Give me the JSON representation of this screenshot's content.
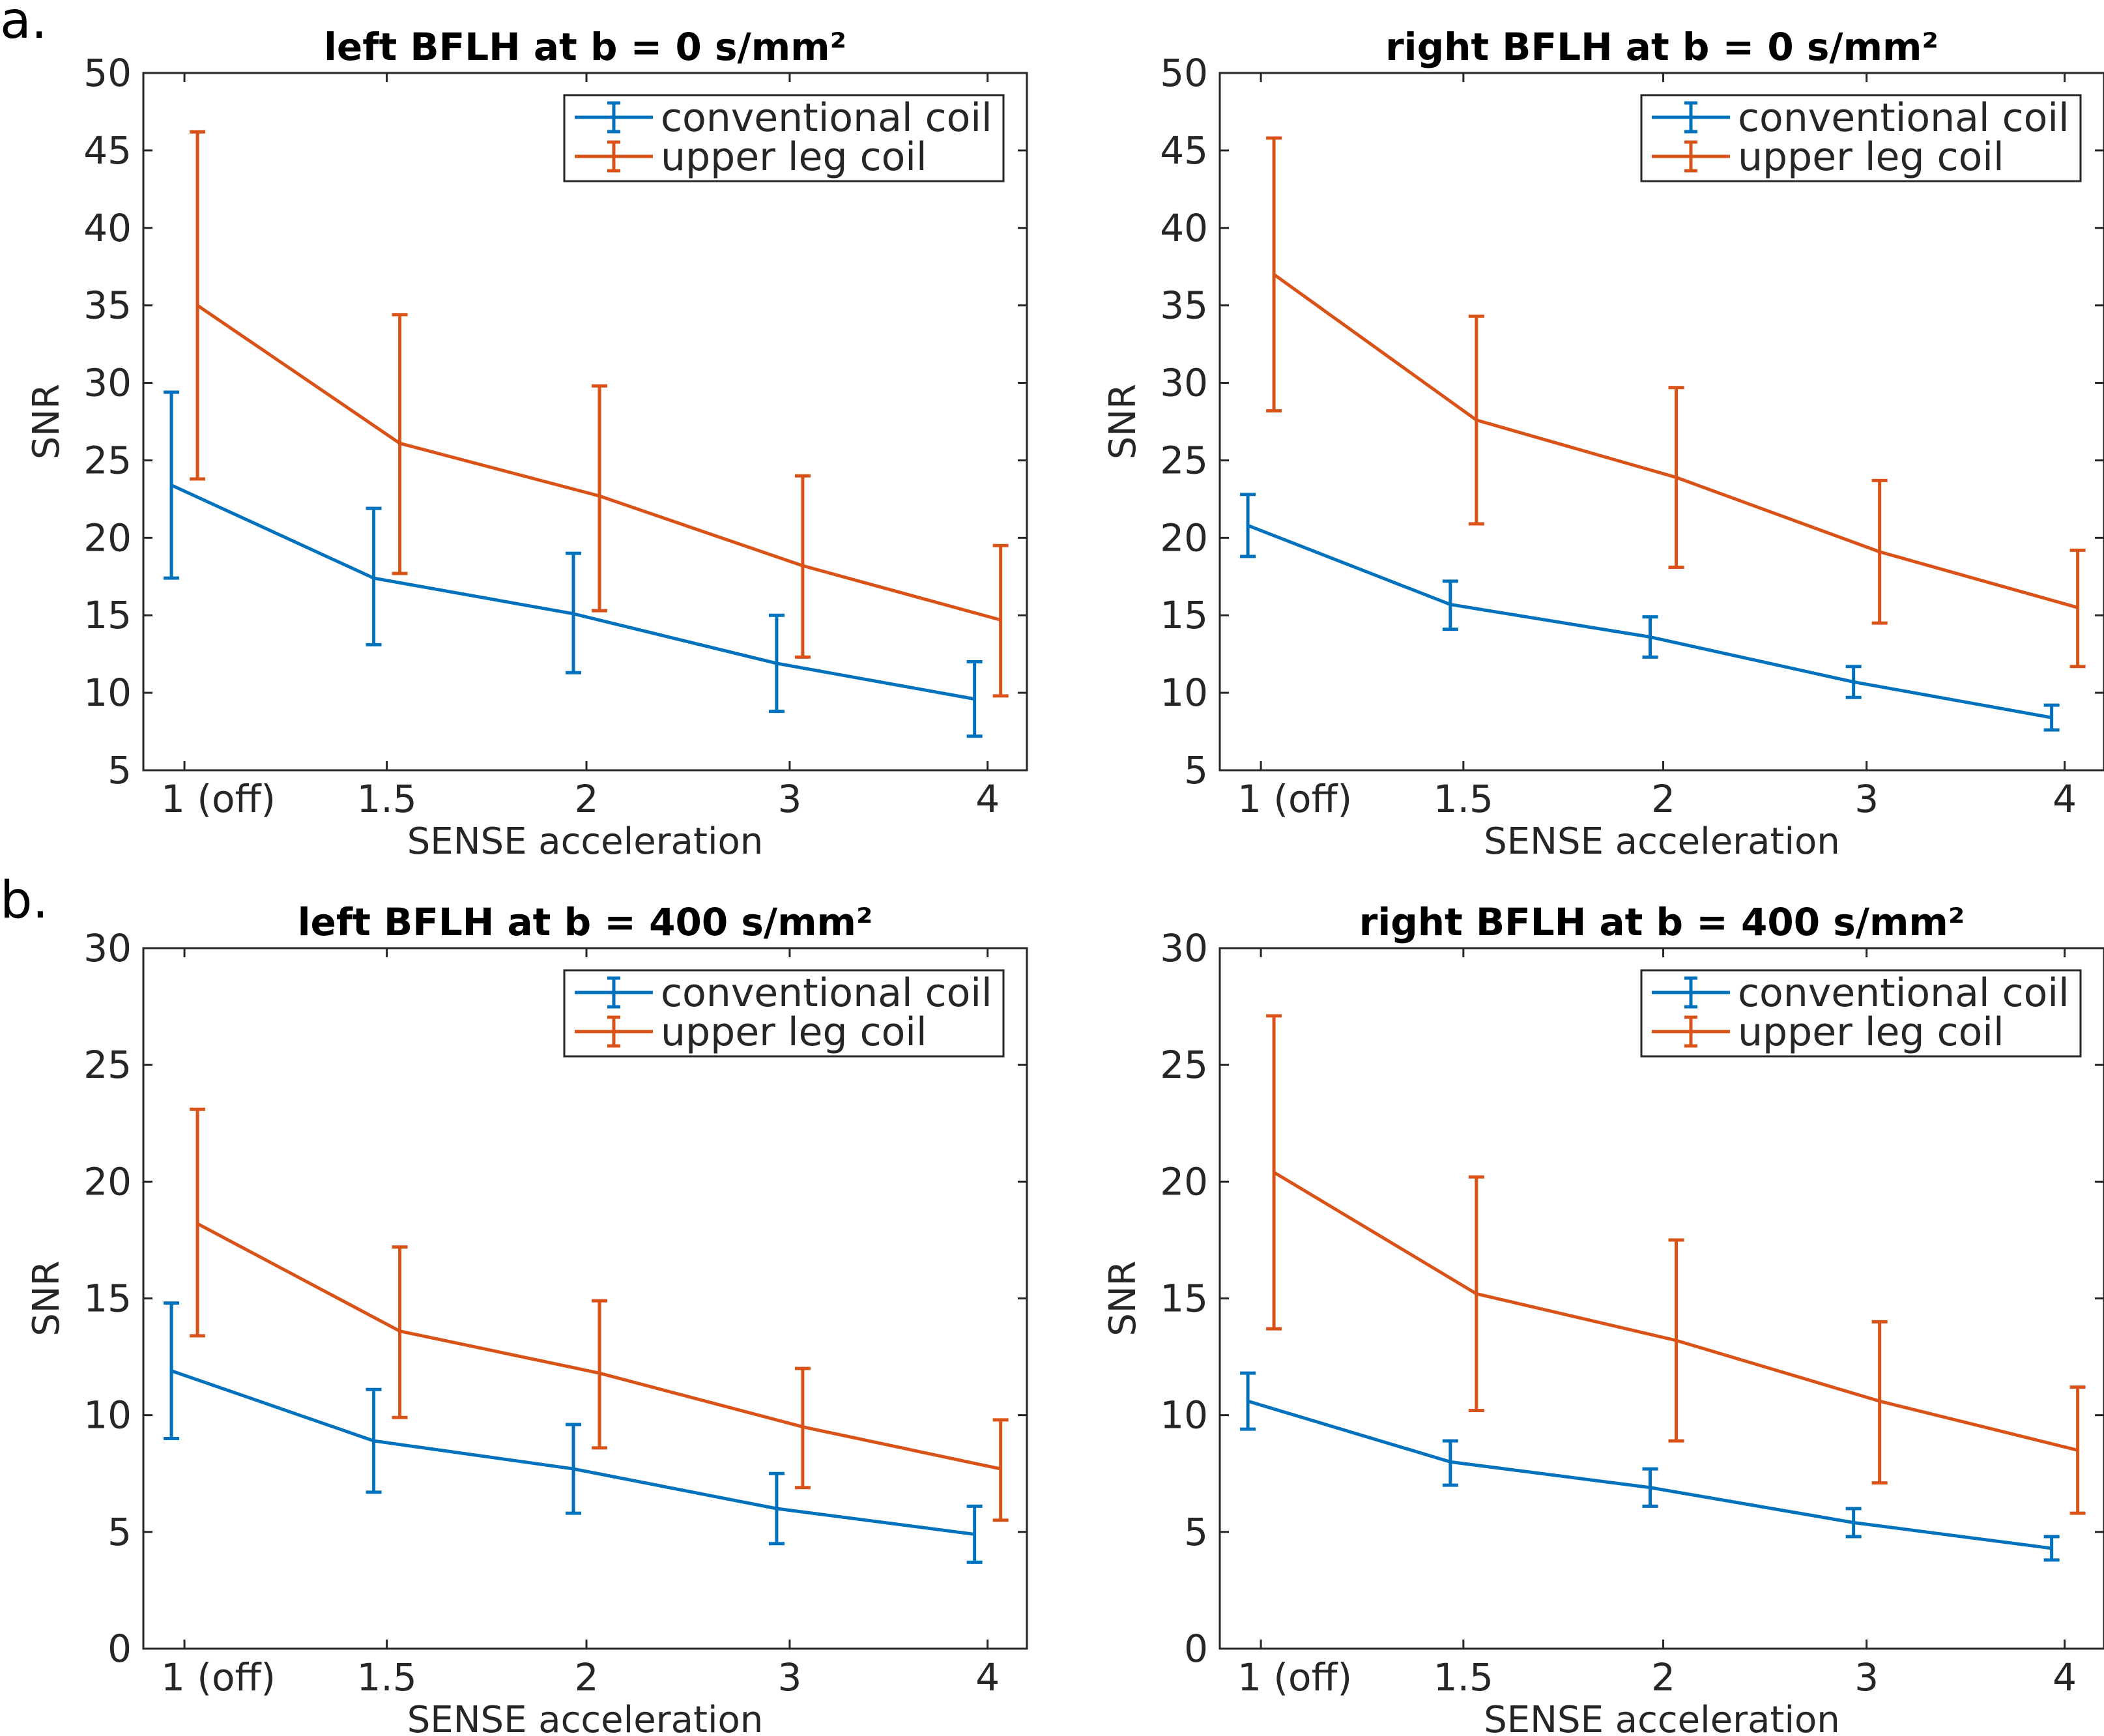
{
  "panel_labels": [
    "a.",
    "b."
  ],
  "chart_data": [
    {
      "type": "line",
      "title": "left BFLH at b = 0 s/mm²",
      "xlabel": "SENSE acceleration",
      "ylabel": "SNR",
      "categories": [
        "1 (off)",
        "1.5",
        "2",
        "3",
        "4"
      ],
      "ylim": [
        5,
        50
      ],
      "yticks": [
        "5",
        "10",
        "15",
        "20",
        "25",
        "30",
        "35",
        "40",
        "45",
        "50"
      ],
      "legend_position": "top-right",
      "series": [
        {
          "name": "conventional coil",
          "color": "#0072BD",
          "values": [
            23.4,
            17.4,
            15.1,
            11.9,
            9.6
          ],
          "lower": [
            17.4,
            13.1,
            11.3,
            8.8,
            7.2
          ],
          "upper": [
            29.4,
            21.9,
            19.0,
            15.0,
            12.0
          ]
        },
        {
          "name": "upper leg coil",
          "color": "#D95319",
          "values": [
            35.0,
            26.1,
            22.7,
            18.2,
            14.7
          ],
          "lower": [
            23.8,
            17.7,
            15.3,
            12.3,
            9.8
          ],
          "upper": [
            46.2,
            34.4,
            29.8,
            24.0,
            19.5
          ]
        }
      ]
    },
    {
      "type": "line",
      "title": "right BFLH at b = 0 s/mm²",
      "xlabel": "SENSE acceleration",
      "ylabel": "SNR",
      "categories": [
        "1 (off)",
        "1.5",
        "2",
        "3",
        "4"
      ],
      "ylim": [
        5,
        50
      ],
      "yticks": [
        "5",
        "10",
        "15",
        "20",
        "25",
        "30",
        "35",
        "40",
        "45",
        "50"
      ],
      "legend_position": "top-right",
      "series": [
        {
          "name": "conventional coil",
          "color": "#0072BD",
          "values": [
            20.8,
            15.7,
            13.6,
            10.7,
            8.4
          ],
          "lower": [
            18.8,
            14.1,
            12.3,
            9.7,
            7.6
          ],
          "upper": [
            22.8,
            17.2,
            14.9,
            11.7,
            9.2
          ]
        },
        {
          "name": "upper leg coil",
          "color": "#D95319",
          "values": [
            37.0,
            27.6,
            23.9,
            19.1,
            15.5
          ],
          "lower": [
            28.2,
            20.9,
            18.1,
            14.5,
            11.7
          ],
          "upper": [
            45.8,
            34.3,
            29.7,
            23.7,
            19.2
          ]
        }
      ]
    },
    {
      "type": "line",
      "title": "left BFLH at b = 400 s/mm²",
      "xlabel": "SENSE acceleration",
      "ylabel": "SNR",
      "categories": [
        "1 (off)",
        "1.5",
        "2",
        "3",
        "4"
      ],
      "ylim": [
        0,
        30
      ],
      "yticks": [
        "0",
        "5",
        "10",
        "15",
        "20",
        "25",
        "30"
      ],
      "legend_position": "top-right",
      "series": [
        {
          "name": "conventional coil",
          "color": "#0072BD",
          "values": [
            11.9,
            8.9,
            7.7,
            6.0,
            4.9
          ],
          "lower": [
            9.0,
            6.7,
            5.8,
            4.5,
            3.7
          ],
          "upper": [
            14.8,
            11.1,
            9.6,
            7.5,
            6.1
          ]
        },
        {
          "name": "upper leg coil",
          "color": "#D95319",
          "values": [
            18.2,
            13.6,
            11.8,
            9.5,
            7.7
          ],
          "lower": [
            13.4,
            9.9,
            8.6,
            6.9,
            5.5
          ],
          "upper": [
            23.1,
            17.2,
            14.9,
            12.0,
            9.8
          ]
        }
      ]
    },
    {
      "type": "line",
      "title": "right BFLH at b = 400 s/mm²",
      "xlabel": "SENSE acceleration",
      "ylabel": "SNR",
      "categories": [
        "1 (off)",
        "1.5",
        "2",
        "3",
        "4"
      ],
      "ylim": [
        0,
        30
      ],
      "yticks": [
        "0",
        "5",
        "10",
        "15",
        "20",
        "25",
        "30"
      ],
      "legend_position": "top-right",
      "series": [
        {
          "name": "conventional coil",
          "color": "#0072BD",
          "values": [
            10.6,
            8.0,
            6.9,
            5.4,
            4.3
          ],
          "lower": [
            9.4,
            7.0,
            6.1,
            4.8,
            3.8
          ],
          "upper": [
            11.8,
            8.9,
            7.7,
            6.0,
            4.8
          ]
        },
        {
          "name": "upper leg coil",
          "color": "#D95319",
          "values": [
            20.4,
            15.2,
            13.2,
            10.6,
            8.5
          ],
          "lower": [
            13.7,
            10.2,
            8.9,
            7.1,
            5.8
          ],
          "upper": [
            27.1,
            20.2,
            17.5,
            14.0,
            11.2
          ]
        }
      ]
    }
  ]
}
